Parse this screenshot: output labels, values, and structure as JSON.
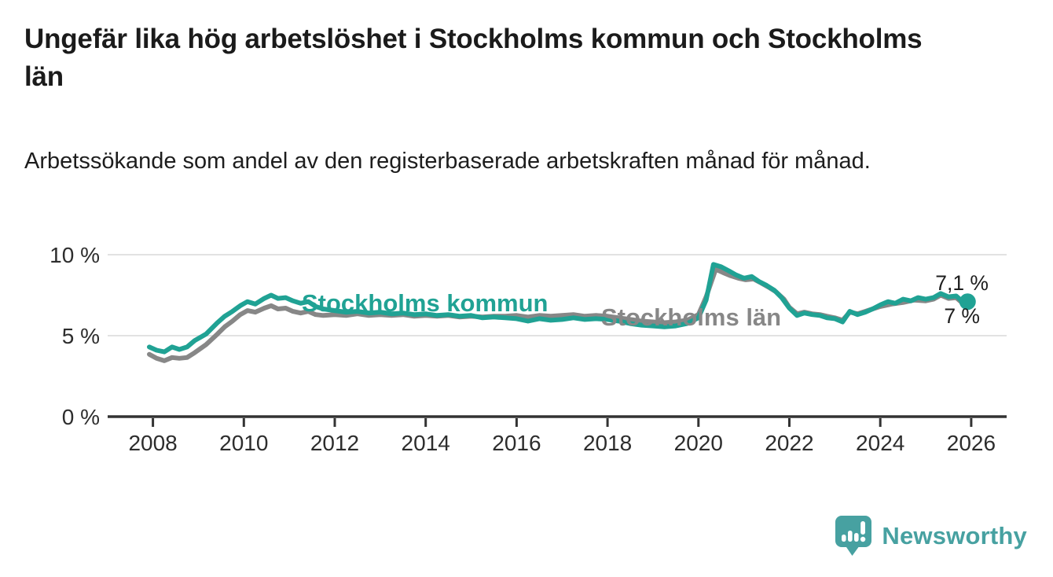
{
  "header": {
    "title": "Ungefär lika hög arbetslöshet i Stockholms kommun och Stockholms län",
    "subtitle": "Arbetssökande som andel av den registerbaserade arbetskraften månad för månad."
  },
  "chart_data": {
    "type": "line",
    "unit": "percent of registered labour force",
    "x_axis": {
      "ticks": [
        "2008",
        "2010",
        "2012",
        "2014",
        "2016",
        "2018",
        "2020",
        "2022",
        "2024",
        "2026"
      ],
      "tick_values": [
        2008,
        2010,
        2012,
        2014,
        2016,
        2018,
        2020,
        2022,
        2024,
        2026
      ],
      "range": [
        2007.9,
        2026.8
      ]
    },
    "y_axis": {
      "ticks": [
        "0 %",
        "5 %",
        "10 %"
      ],
      "tick_values": [
        0,
        5,
        10
      ],
      "range": [
        0,
        10.5
      ],
      "grid": true
    },
    "legend_position": "inline-labels-on-lines",
    "series": [
      {
        "name": "Stockholms kommun",
        "color": "#20a294",
        "end_label": "7,1 %",
        "end_value": 7.1,
        "end_dot": true,
        "points": [
          [
            2007.92,
            4.3
          ],
          [
            2008.08,
            4.1
          ],
          [
            2008.25,
            4.0
          ],
          [
            2008.42,
            4.3
          ],
          [
            2008.58,
            4.15
          ],
          [
            2008.75,
            4.3
          ],
          [
            2008.92,
            4.7
          ],
          [
            2009.17,
            5.1
          ],
          [
            2009.42,
            5.8
          ],
          [
            2009.58,
            6.2
          ],
          [
            2009.75,
            6.5
          ],
          [
            2009.92,
            6.85
          ],
          [
            2010.08,
            7.1
          ],
          [
            2010.25,
            6.95
          ],
          [
            2010.45,
            7.3
          ],
          [
            2010.6,
            7.5
          ],
          [
            2010.75,
            7.3
          ],
          [
            2010.92,
            7.35
          ],
          [
            2011.08,
            7.15
          ],
          [
            2011.25,
            7.0
          ],
          [
            2011.42,
            7.1
          ],
          [
            2011.58,
            6.8
          ],
          [
            2011.75,
            6.65
          ],
          [
            2012.0,
            6.55
          ],
          [
            2012.25,
            6.45
          ],
          [
            2012.5,
            6.5
          ],
          [
            2012.75,
            6.4
          ],
          [
            2013.0,
            6.45
          ],
          [
            2013.25,
            6.35
          ],
          [
            2013.5,
            6.4
          ],
          [
            2013.75,
            6.3
          ],
          [
            2014.0,
            6.35
          ],
          [
            2014.25,
            6.25
          ],
          [
            2014.5,
            6.3
          ],
          [
            2014.75,
            6.2
          ],
          [
            2015.0,
            6.25
          ],
          [
            2015.25,
            6.1
          ],
          [
            2015.5,
            6.15
          ],
          [
            2015.75,
            6.1
          ],
          [
            2016.0,
            6.05
          ],
          [
            2016.25,
            5.9
          ],
          [
            2016.5,
            6.05
          ],
          [
            2016.75,
            5.95
          ],
          [
            2017.0,
            6.0
          ],
          [
            2017.25,
            6.1
          ],
          [
            2017.5,
            6.0
          ],
          [
            2017.75,
            6.05
          ],
          [
            2018.0,
            6.0
          ],
          [
            2018.25,
            5.9
          ],
          [
            2018.5,
            5.75
          ],
          [
            2018.75,
            5.65
          ],
          [
            2019.0,
            5.6
          ],
          [
            2019.25,
            5.55
          ],
          [
            2019.5,
            5.6
          ],
          [
            2019.75,
            5.75
          ],
          [
            2020.0,
            6.1
          ],
          [
            2020.17,
            7.2
          ],
          [
            2020.33,
            9.4
          ],
          [
            2020.5,
            9.25
          ],
          [
            2020.67,
            9.0
          ],
          [
            2020.83,
            8.75
          ],
          [
            2021.0,
            8.55
          ],
          [
            2021.17,
            8.65
          ],
          [
            2021.33,
            8.35
          ],
          [
            2021.5,
            8.1
          ],
          [
            2021.67,
            7.8
          ],
          [
            2021.83,
            7.35
          ],
          [
            2022.0,
            6.7
          ],
          [
            2022.17,
            6.25
          ],
          [
            2022.33,
            6.4
          ],
          [
            2022.5,
            6.3
          ],
          [
            2022.67,
            6.25
          ],
          [
            2022.83,
            6.1
          ],
          [
            2023.0,
            6.05
          ],
          [
            2023.17,
            5.85
          ],
          [
            2023.33,
            6.5
          ],
          [
            2023.5,
            6.3
          ],
          [
            2023.67,
            6.45
          ],
          [
            2023.83,
            6.65
          ],
          [
            2024.0,
            6.9
          ],
          [
            2024.17,
            7.1
          ],
          [
            2024.33,
            7.0
          ],
          [
            2024.5,
            7.25
          ],
          [
            2024.67,
            7.15
          ],
          [
            2024.83,
            7.35
          ],
          [
            2025.0,
            7.25
          ],
          [
            2025.17,
            7.35
          ],
          [
            2025.33,
            7.6
          ],
          [
            2025.5,
            7.4
          ],
          [
            2025.67,
            7.45
          ],
          [
            2025.83,
            7.05
          ],
          [
            2025.92,
            7.1
          ]
        ]
      },
      {
        "name": "Stockholms län",
        "color": "#878787",
        "end_label": "7 %",
        "end_value": 7.0,
        "end_dot": false,
        "points": [
          [
            2007.92,
            3.85
          ],
          [
            2008.08,
            3.6
          ],
          [
            2008.25,
            3.45
          ],
          [
            2008.42,
            3.65
          ],
          [
            2008.58,
            3.6
          ],
          [
            2008.75,
            3.65
          ],
          [
            2008.92,
            3.95
          ],
          [
            2009.17,
            4.45
          ],
          [
            2009.42,
            5.1
          ],
          [
            2009.58,
            5.55
          ],
          [
            2009.75,
            5.9
          ],
          [
            2009.92,
            6.3
          ],
          [
            2010.08,
            6.55
          ],
          [
            2010.25,
            6.45
          ],
          [
            2010.45,
            6.7
          ],
          [
            2010.6,
            6.85
          ],
          [
            2010.75,
            6.65
          ],
          [
            2010.92,
            6.7
          ],
          [
            2011.08,
            6.5
          ],
          [
            2011.25,
            6.4
          ],
          [
            2011.42,
            6.5
          ],
          [
            2011.58,
            6.3
          ],
          [
            2011.75,
            6.25
          ],
          [
            2012.0,
            6.3
          ],
          [
            2012.25,
            6.25
          ],
          [
            2012.5,
            6.35
          ],
          [
            2012.75,
            6.25
          ],
          [
            2013.0,
            6.3
          ],
          [
            2013.25,
            6.25
          ],
          [
            2013.5,
            6.3
          ],
          [
            2013.75,
            6.2
          ],
          [
            2014.0,
            6.25
          ],
          [
            2014.25,
            6.2
          ],
          [
            2014.5,
            6.25
          ],
          [
            2014.75,
            6.15
          ],
          [
            2015.0,
            6.2
          ],
          [
            2015.25,
            6.15
          ],
          [
            2015.5,
            6.2
          ],
          [
            2015.75,
            6.2
          ],
          [
            2016.0,
            6.25
          ],
          [
            2016.25,
            6.15
          ],
          [
            2016.5,
            6.25
          ],
          [
            2016.75,
            6.2
          ],
          [
            2017.0,
            6.25
          ],
          [
            2017.25,
            6.3
          ],
          [
            2017.5,
            6.2
          ],
          [
            2017.75,
            6.25
          ],
          [
            2018.0,
            6.2
          ],
          [
            2018.25,
            6.1
          ],
          [
            2018.5,
            6.0
          ],
          [
            2018.75,
            5.9
          ],
          [
            2019.0,
            5.85
          ],
          [
            2019.25,
            5.8
          ],
          [
            2019.5,
            5.85
          ],
          [
            2019.75,
            5.95
          ],
          [
            2020.0,
            6.3
          ],
          [
            2020.17,
            7.4
          ],
          [
            2020.38,
            9.1
          ],
          [
            2020.54,
            8.9
          ],
          [
            2020.71,
            8.7
          ],
          [
            2020.88,
            8.55
          ],
          [
            2021.04,
            8.45
          ],
          [
            2021.21,
            8.5
          ],
          [
            2021.38,
            8.25
          ],
          [
            2021.54,
            8.0
          ],
          [
            2021.71,
            7.7
          ],
          [
            2021.88,
            7.25
          ],
          [
            2022.0,
            6.75
          ],
          [
            2022.17,
            6.35
          ],
          [
            2022.33,
            6.45
          ],
          [
            2022.5,
            6.35
          ],
          [
            2022.67,
            6.3
          ],
          [
            2022.83,
            6.2
          ],
          [
            2023.0,
            6.1
          ],
          [
            2023.17,
            5.95
          ],
          [
            2023.33,
            6.45
          ],
          [
            2023.5,
            6.35
          ],
          [
            2023.67,
            6.5
          ],
          [
            2023.83,
            6.65
          ],
          [
            2024.0,
            6.8
          ],
          [
            2024.25,
            6.95
          ],
          [
            2024.5,
            7.05
          ],
          [
            2024.75,
            7.2
          ],
          [
            2025.0,
            7.15
          ],
          [
            2025.17,
            7.25
          ],
          [
            2025.33,
            7.5
          ],
          [
            2025.5,
            7.3
          ],
          [
            2025.67,
            7.35
          ],
          [
            2025.83,
            6.95
          ],
          [
            2025.92,
            7.0
          ]
        ]
      }
    ]
  },
  "branding": {
    "name": "Newsworthy",
    "icon": "chart-speech-bubble-icon"
  },
  "colors": {
    "kommun_teal": "#20a294",
    "lan_gray": "#878787",
    "brand_teal": "#47a1a1",
    "gridline": "#e2e2e2",
    "axis": "#333333",
    "axis_text": "#2d2d2d",
    "annotation_text": "#1d1d1d"
  }
}
